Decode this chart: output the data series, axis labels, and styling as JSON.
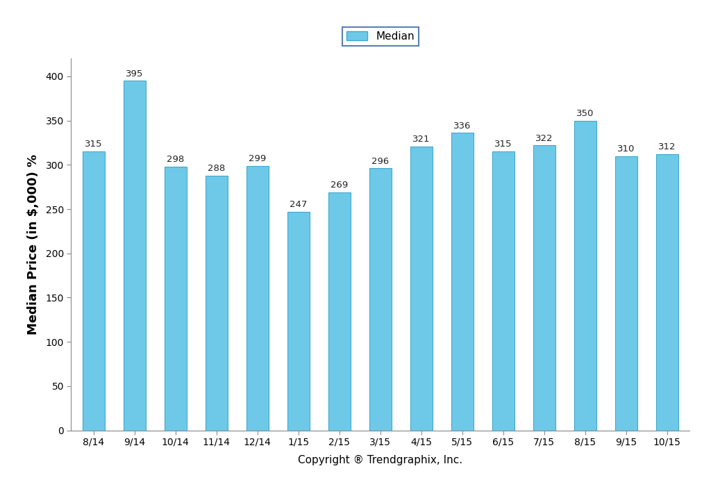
{
  "categories": [
    "8/14",
    "9/14",
    "10/14",
    "11/14",
    "12/14",
    "1/15",
    "2/15",
    "3/15",
    "4/15",
    "5/15",
    "6/15",
    "7/15",
    "8/15",
    "9/15",
    "10/15"
  ],
  "values": [
    315,
    395,
    298,
    288,
    299,
    247,
    269,
    296,
    321,
    336,
    315,
    322,
    350,
    310,
    312
  ],
  "bar_color": "#6EC9E9",
  "bar_edge_color": "#3FA8CC",
  "ylabel": "Median Price (in $,000) %",
  "xlabel": "Copyright ® Trendgraphix, Inc.",
  "legend_label": "Median",
  "legend_edge_color": "#3060A0",
  "ylim": [
    0,
    420
  ],
  "yticks": [
    0,
    50,
    100,
    150,
    200,
    250,
    300,
    350,
    400
  ],
  "background_color": "#ffffff",
  "bar_width": 0.55,
  "label_fontsize": 9.5,
  "ylabel_fontsize": 13,
  "xlabel_fontsize": 11,
  "tick_fontsize": 10,
  "legend_fontsize": 11
}
